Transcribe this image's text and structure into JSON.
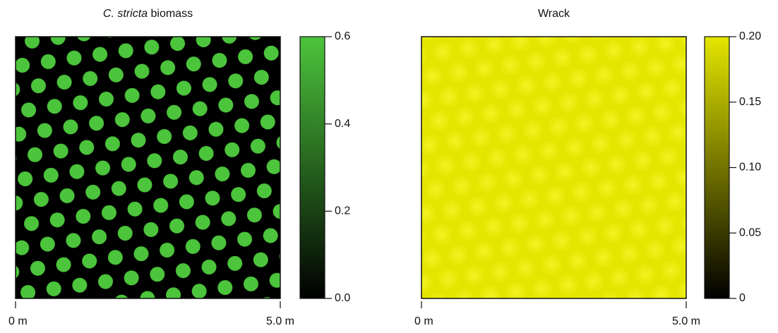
{
  "chart_data": [
    {
      "type": "heatmap",
      "title": {
        "italic": "C. stricta",
        "rest": "biomass"
      },
      "xlim": [
        0,
        5
      ],
      "xticks": [
        {
          "value": 0,
          "label": "0 m"
        },
        {
          "value": 5,
          "label": "5.0 m"
        }
      ],
      "colors": [
        "#000000",
        "#4cc43c"
      ],
      "clim": [
        0,
        0.6
      ],
      "cticks": [
        {
          "value": 0,
          "label": "0.0"
        },
        0.2,
        0.4,
        0.6
      ]
    },
    {
      "type": "heatmap",
      "title": {
        "rest": "Wrack"
      },
      "xlim": [
        0,
        5
      ],
      "xticks": [
        {
          "value": 0,
          "label": "0 m"
        },
        {
          "value": 5,
          "label": "5.0 m"
        }
      ],
      "colors": [
        "#000000",
        "#e4e600"
      ],
      "clim": [
        0,
        0.2
      ],
      "cticks": [
        0,
        0.05,
        {
          "value": 0.1,
          "label": "0.10"
        },
        0.15,
        {
          "value": 0.2,
          "label": "0.20"
        }
      ]
    }
  ]
}
